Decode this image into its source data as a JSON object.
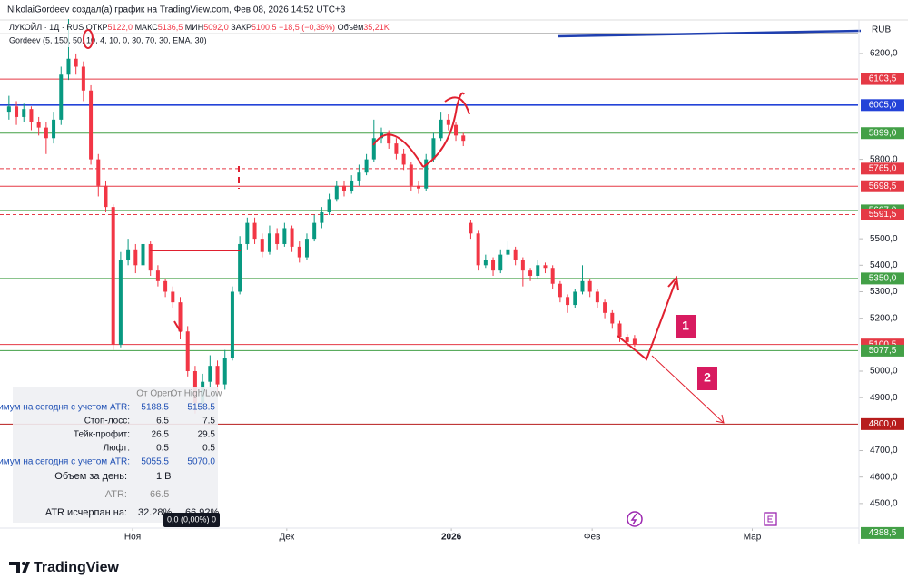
{
  "header": {
    "creator": "NikolaiGordeev создал(а) график на TradingView.com, Фев 08, 2026 14:52 UTC+3",
    "symbol": "ЛУКОЙЛ · 1Д · RUS",
    "open_label": "ОТКР",
    "open": "5122,0",
    "high_label": "МАКС",
    "high": "5136,5",
    "low_label": "МИН",
    "low": "5092,0",
    "close_label": "ЗАКР",
    "close": "5100,5",
    "change": "−18,5 (−0,36%)",
    "volume_label": "Объём",
    "volume": "35,21K",
    "indicator": "Gordeev (5, 150, 50, 10, 4, 10, 0, 30, 70, 30, EMA, 30)",
    "currency": "RUB"
  },
  "panel": {
    "columns": [
      "От Open",
      "От High/Low"
    ],
    "rows": [
      [
        "Максимум на сегодня с учетом ATR:",
        "5188.5",
        "5158.5"
      ],
      [
        "Стоп-лосс:",
        "6.5",
        "7.5"
      ],
      [
        "Тейк-профит:",
        "26.5",
        "29.5"
      ],
      [
        "Люфт:",
        "0.5",
        "0.5"
      ],
      [
        "Минимум на сегодня с учетом ATR:",
        "5055.5",
        "5070.0"
      ]
    ],
    "volume_label": "Объем за день:",
    "volume": "1 B",
    "atr_label": "ATR:",
    "atr": "66.5",
    "used_label": "ATR исчерпан на:",
    "used_open": "32.28%",
    "used_hl": "66.92%"
  },
  "tooltip": "0,0 (0,00%) 0",
  "annotations": [
    "1",
    "2"
  ],
  "footer": "TradingView",
  "chart_data": {
    "type": "candlestick",
    "up_color": "#089981",
    "down_color": "#f23645",
    "ylim": [
      4407,
      6306
    ],
    "xlim": [
      -1.2,
      114
    ],
    "yticks": [
      {
        "value": 6200,
        "label": "6200,0"
      },
      {
        "value": 5800,
        "label": "5800,0"
      },
      {
        "value": 5500,
        "label": "5500,0"
      },
      {
        "value": 5400,
        "label": "5400,0"
      },
      {
        "value": 5300,
        "label": "5300,0"
      },
      {
        "value": 5200,
        "label": "5200,0"
      },
      {
        "value": 5000,
        "label": "5000,0"
      },
      {
        "value": 4900,
        "label": "4900,0"
      },
      {
        "value": 4700,
        "label": "4700,0"
      },
      {
        "value": 4600,
        "label": "4600,0"
      },
      {
        "value": 4500,
        "label": "4500,0"
      }
    ],
    "xticks": [
      {
        "value": 16.6,
        "label": "Ноя"
      },
      {
        "value": 37.3,
        "label": "Дек"
      },
      {
        "value": 59.4,
        "label": "2026"
      },
      {
        "value": 78.3,
        "label": "Фев"
      },
      {
        "value": 99.8,
        "label": "Мар"
      }
    ],
    "levels": [
      {
        "value": 6103.5,
        "label": "6103,5",
        "color": "#e53945",
        "style": "solid",
        "line": true
      },
      {
        "value": 6005,
        "label": "6005,0",
        "color": "#2443d8",
        "style": "solid",
        "line": true
      },
      {
        "value": 5899,
        "label": "5899,0",
        "color": "#43a047",
        "style": "solid",
        "line": true
      },
      {
        "value": 5765,
        "label": "5765,0",
        "color": "#e53945",
        "style": "dashed",
        "line": true
      },
      {
        "value": 5698.5,
        "label": "5698,5",
        "color": "#e53945",
        "style": "solid",
        "line": true
      },
      {
        "value": 5607,
        "label": "5607,0",
        "color": "#43a047",
        "style": "solid",
        "line": true
      },
      {
        "value": 5591.5,
        "label": "5591,5",
        "color": "#e53945",
        "style": "dashed",
        "line": true
      },
      {
        "value": 5350,
        "label": "5350,0",
        "color": "#43a047",
        "style": "solid",
        "line": true
      },
      {
        "value": 5100.5,
        "label": "5100,5",
        "color": "#e53945",
        "style": "solid",
        "line": true
      },
      {
        "value": 5077.5,
        "label": "5077,5",
        "color": "#43a047",
        "style": "solid",
        "line": true
      },
      {
        "value": 4800,
        "label": "4800,0",
        "color": "#b71c1c",
        "style": "solid",
        "line": true
      },
      {
        "value": 4388.5,
        "label": "4388,5",
        "color": "#43a047",
        "style": "solid",
        "line": false
      }
    ],
    "ohlc": [
      [
        5980,
        6040,
        5950,
        6000
      ],
      [
        6000,
        6020,
        5930,
        5960
      ],
      [
        5960,
        6010,
        5940,
        5990
      ],
      [
        5990,
        6000,
        5910,
        5940
      ],
      [
        5940,
        5960,
        5890,
        5920
      ],
      [
        5920,
        5940,
        5820,
        5880
      ],
      [
        5880,
        5980,
        5860,
        5950
      ],
      [
        5950,
        6150,
        5930,
        6120
      ],
      [
        6120,
        6330,
        6100,
        6180
      ],
      [
        6180,
        6200,
        6120,
        6150
      ],
      [
        6150,
        6170,
        6020,
        6060
      ],
      [
        6060,
        6080,
        5780,
        5800
      ],
      [
        5800,
        5820,
        5660,
        5700
      ],
      [
        5700,
        5720,
        5600,
        5620
      ],
      [
        5620,
        5630,
        5080,
        5100
      ],
      [
        5100,
        5450,
        5090,
        5420
      ],
      [
        5420,
        5500,
        5400,
        5460
      ],
      [
        5460,
        5480,
        5370,
        5400
      ],
      [
        5400,
        5510,
        5390,
        5480
      ],
      [
        5480,
        5490,
        5360,
        5380
      ],
      [
        5380,
        5400,
        5320,
        5340
      ],
      [
        5340,
        5350,
        5280,
        5300
      ],
      [
        5300,
        5320,
        5240,
        5260
      ],
      [
        5260,
        5280,
        5120,
        5150
      ],
      [
        5150,
        5170,
        4980,
        5000
      ],
      [
        5000,
        5020,
        4840,
        4880
      ],
      [
        4880,
        4990,
        4860,
        4960
      ],
      [
        4960,
        5060,
        4940,
        5020
      ],
      [
        5020,
        5040,
        4920,
        4950
      ],
      [
        4950,
        5080,
        4930,
        5050
      ],
      [
        5050,
        5320,
        5040,
        5300
      ],
      [
        5300,
        5510,
        5290,
        5480
      ],
      [
        5480,
        5580,
        5460,
        5560
      ],
      [
        5560,
        5580,
        5480,
        5500
      ],
      [
        5500,
        5520,
        5430,
        5450
      ],
      [
        5450,
        5550,
        5440,
        5520
      ],
      [
        5520,
        5540,
        5460,
        5480
      ],
      [
        5480,
        5560,
        5470,
        5540
      ],
      [
        5540,
        5550,
        5450,
        5470
      ],
      [
        5470,
        5490,
        5410,
        5430
      ],
      [
        5430,
        5520,
        5420,
        5500
      ],
      [
        5500,
        5590,
        5490,
        5560
      ],
      [
        5560,
        5620,
        5540,
        5600
      ],
      [
        5600,
        5670,
        5590,
        5650
      ],
      [
        5650,
        5720,
        5640,
        5700
      ],
      [
        5700,
        5720,
        5660,
        5680
      ],
      [
        5680,
        5740,
        5670,
        5720
      ],
      [
        5720,
        5780,
        5700,
        5750
      ],
      [
        5750,
        5820,
        5740,
        5800
      ],
      [
        5800,
        5950,
        5790,
        5880
      ],
      [
        5880,
        5920,
        5860,
        5900
      ],
      [
        5900,
        5910,
        5840,
        5860
      ],
      [
        5860,
        5880,
        5800,
        5820
      ],
      [
        5820,
        5840,
        5760,
        5780
      ],
      [
        5780,
        5790,
        5680,
        5700
      ],
      [
        5700,
        5720,
        5670,
        5690
      ],
      [
        5690,
        5820,
        5680,
        5800
      ],
      [
        5800,
        5900,
        5790,
        5880
      ],
      [
        5880,
        5980,
        5870,
        5950
      ],
      [
        5950,
        5970,
        5910,
        5930
      ],
      [
        5930,
        5940,
        5870,
        5890
      ],
      [
        5890,
        5900,
        5850,
        5870
      ],
      [
        5560,
        5570,
        5500,
        5520
      ],
      [
        5520,
        5530,
        5380,
        5400
      ],
      [
        5400,
        5440,
        5390,
        5420
      ],
      [
        5420,
        5430,
        5360,
        5380
      ],
      [
        5380,
        5460,
        5370,
        5440
      ],
      [
        5440,
        5490,
        5430,
        5460
      ],
      [
        5460,
        5470,
        5400,
        5420
      ],
      [
        5420,
        5430,
        5320,
        5380
      ],
      [
        5380,
        5390,
        5340,
        5360
      ],
      [
        5360,
        5420,
        5350,
        5400
      ],
      [
        5400,
        5410,
        5370,
        5390
      ],
      [
        5390,
        5400,
        5310,
        5330
      ],
      [
        5330,
        5340,
        5260,
        5280
      ],
      [
        5280,
        5290,
        5220,
        5250
      ],
      [
        5250,
        5310,
        5240,
        5300
      ],
      [
        5300,
        5400,
        5290,
        5340
      ],
      [
        5340,
        5350,
        5280,
        5300
      ],
      [
        5300,
        5310,
        5240,
        5260
      ],
      [
        5260,
        5270,
        5200,
        5220
      ],
      [
        5220,
        5230,
        5160,
        5180
      ],
      [
        5180,
        5190,
        5110,
        5130
      ],
      [
        5130,
        5140,
        5092,
        5110
      ],
      [
        5122,
        5136.5,
        5092,
        5100.5
      ]
    ]
  }
}
